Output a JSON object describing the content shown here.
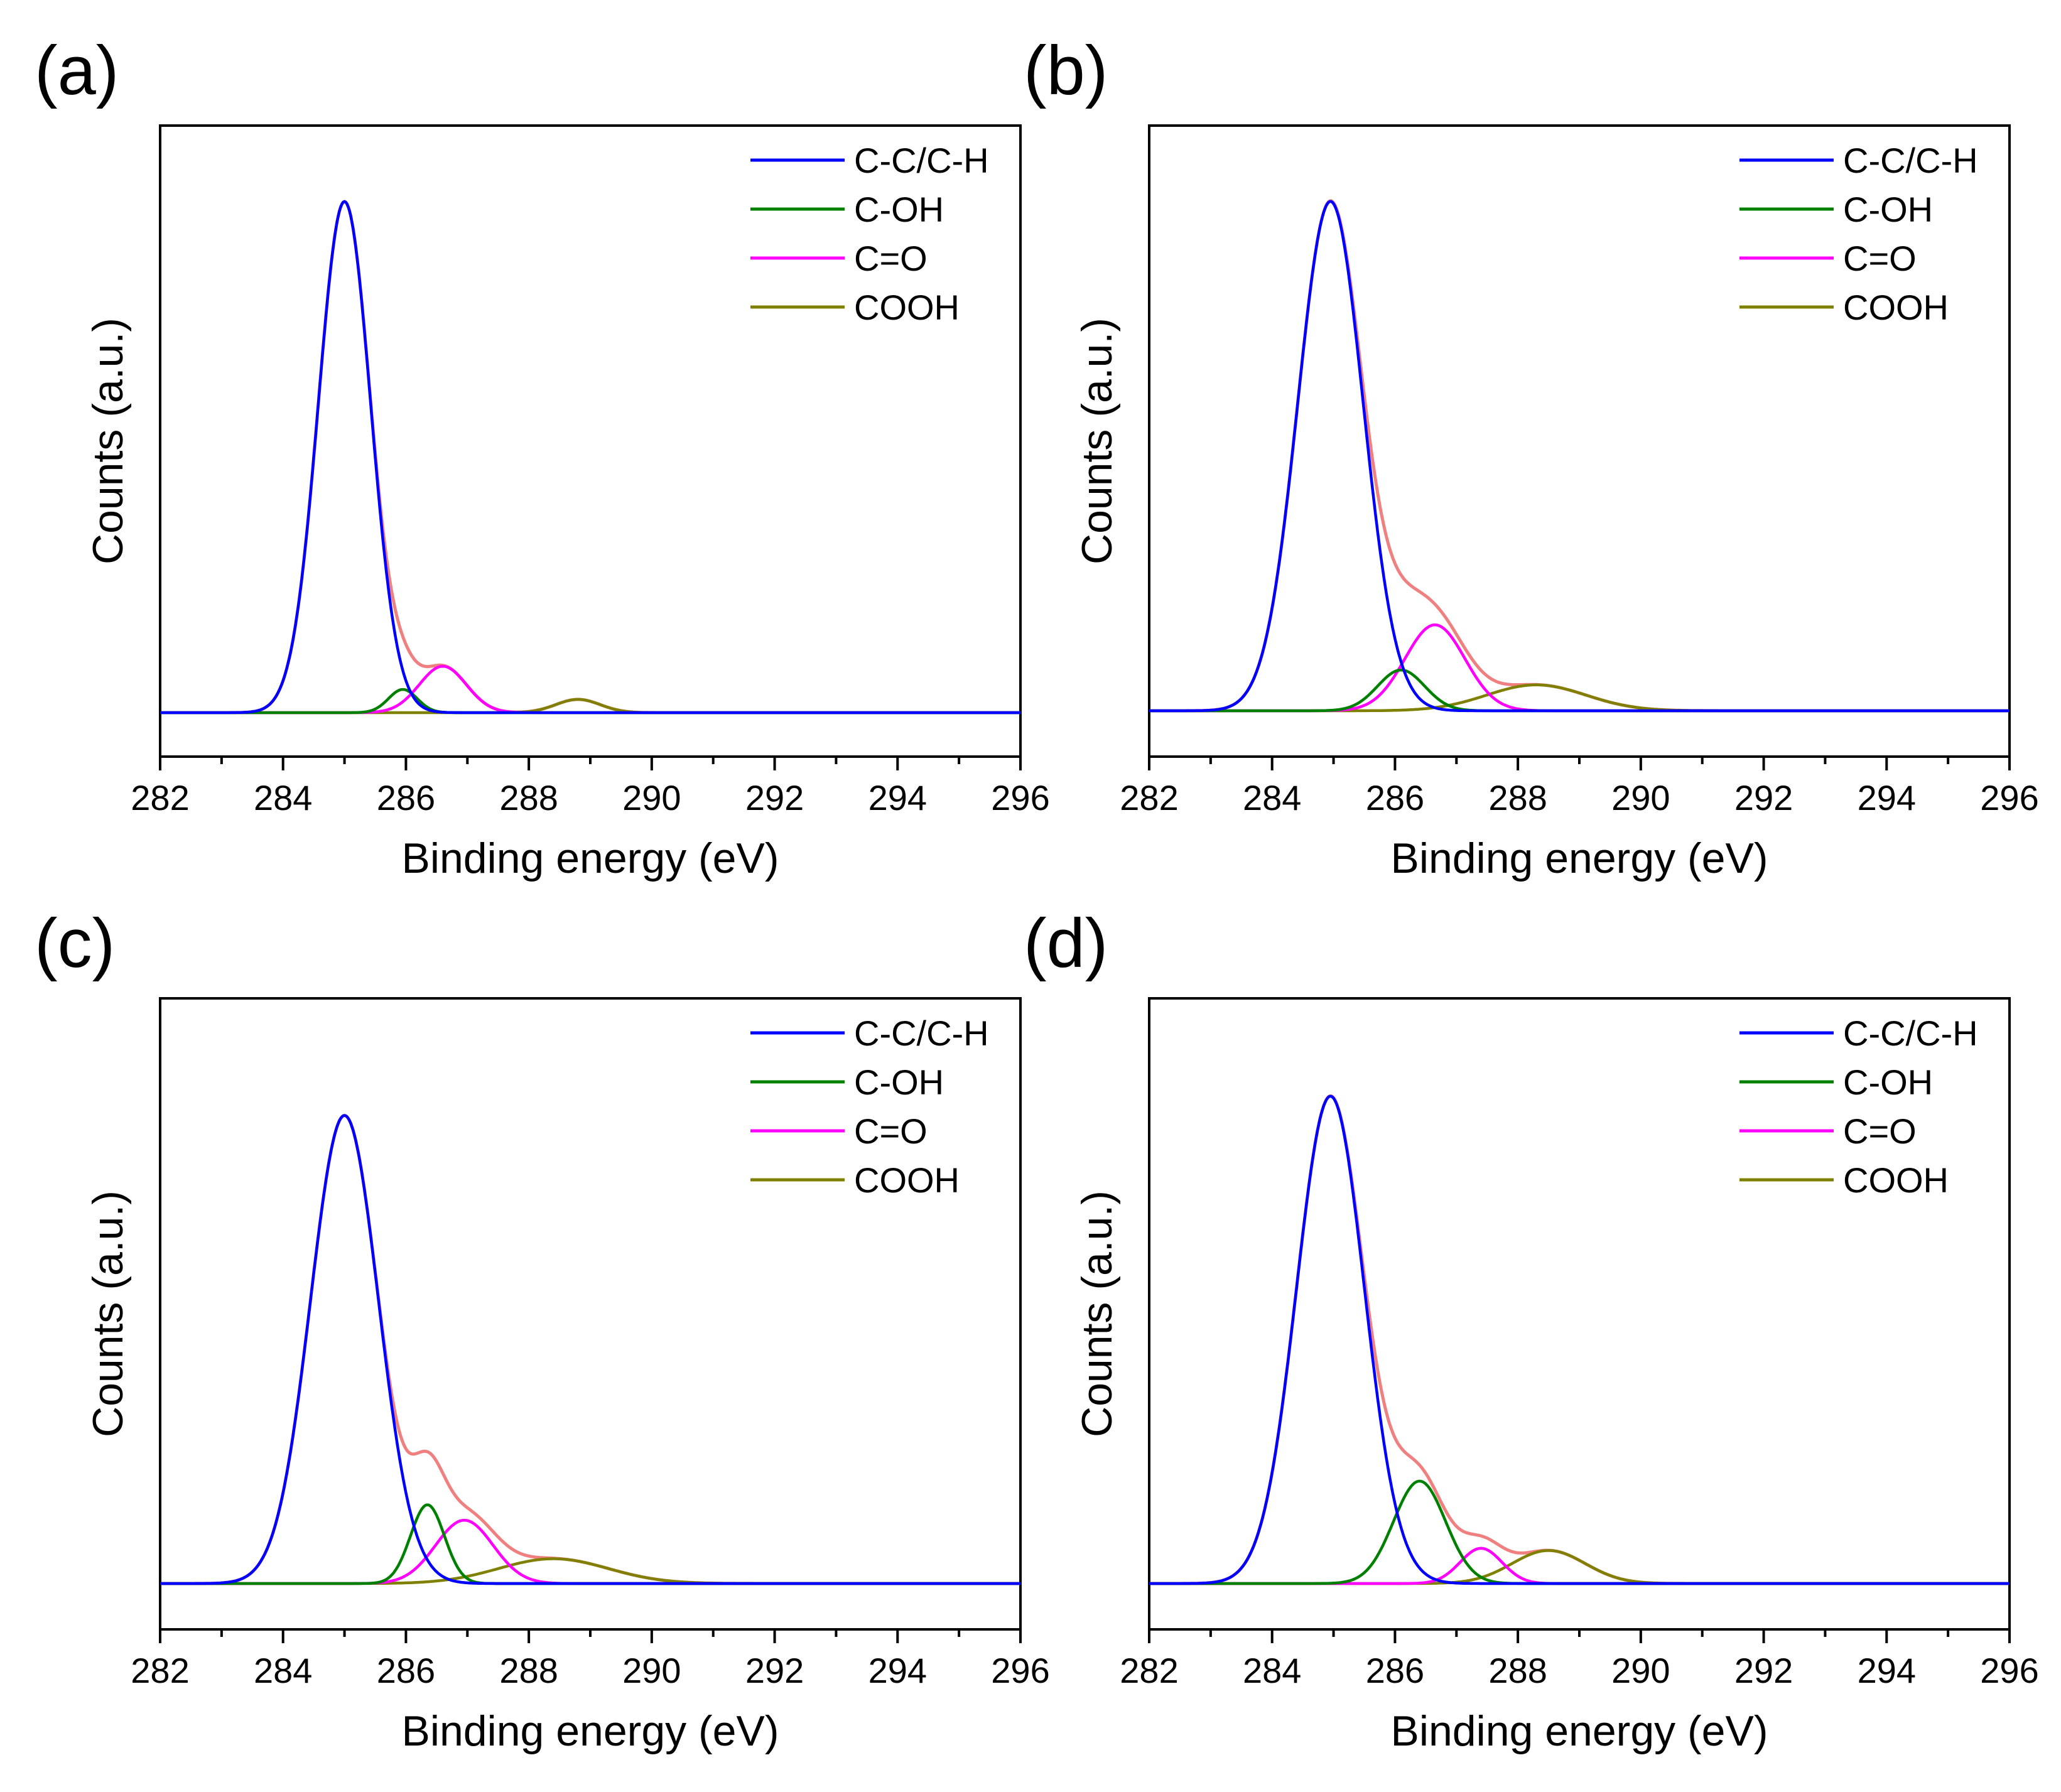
{
  "chart_data": [
    {
      "panel_label": "(a)",
      "type": "line",
      "xlabel": "Binding energy (eV)",
      "ylabel": "Counts (a.u.)",
      "xlim": [
        282,
        296
      ],
      "xticks": [
        282,
        284,
        286,
        288,
        290,
        292,
        294,
        296
      ],
      "y_ticks_shown": false,
      "grid": false,
      "legend_position": "top-right",
      "peaks": [
        {
          "name": "C-C/C-H",
          "color": "#0000ff",
          "center": 285.0,
          "fwhm": 1.0,
          "height": 0.925
        },
        {
          "name": "C-OH",
          "color": "#008000",
          "center": 285.95,
          "fwhm": 0.55,
          "height": 0.042
        },
        {
          "name": "C=O",
          "color": "#ff00ff",
          "center": 286.6,
          "fwhm": 0.9,
          "height": 0.084
        },
        {
          "name": "COOH",
          "color": "#808000",
          "center": 288.8,
          "fwhm": 0.85,
          "height": 0.024
        }
      ],
      "envelope_color": "#f08080"
    },
    {
      "panel_label": "(b)",
      "type": "line",
      "xlabel": "Binding energy (eV)",
      "ylabel": "Counts (a.u.)",
      "xlim": [
        282,
        296
      ],
      "xticks": [
        282,
        284,
        286,
        288,
        290,
        292,
        294,
        296
      ],
      "y_ticks_shown": false,
      "grid": false,
      "legend_position": "top-right",
      "peaks": [
        {
          "name": "C-C/C-H",
          "color": "#0000ff",
          "center": 284.95,
          "fwhm": 1.25,
          "height": 0.925
        },
        {
          "name": "C-OH",
          "color": "#008000",
          "center": 286.1,
          "fwhm": 0.9,
          "height": 0.074
        },
        {
          "name": "C=O",
          "color": "#ff00ff",
          "center": 286.65,
          "fwhm": 1.15,
          "height": 0.156
        },
        {
          "name": "COOH",
          "color": "#808000",
          "center": 288.3,
          "fwhm": 1.9,
          "height": 0.047
        }
      ],
      "envelope_color": "#f08080"
    },
    {
      "panel_label": "(c)",
      "type": "line",
      "xlabel": "Binding energy (eV)",
      "ylabel": "Counts (a.u.)",
      "xlim": [
        282,
        296
      ],
      "xticks": [
        282,
        284,
        286,
        288,
        290,
        292,
        294,
        296
      ],
      "y_ticks_shown": false,
      "grid": false,
      "legend_position": "top-right",
      "peaks": [
        {
          "name": "C-C/C-H",
          "color": "#0000ff",
          "center": 285.0,
          "fwhm": 1.3,
          "height": 0.85
        },
        {
          "name": "C-OH",
          "color": "#008000",
          "center": 286.35,
          "fwhm": 0.65,
          "height": 0.143
        },
        {
          "name": "C=O",
          "color": "#ff00ff",
          "center": 286.95,
          "fwhm": 1.1,
          "height": 0.115
        },
        {
          "name": "COOH",
          "color": "#808000",
          "center": 288.4,
          "fwhm": 2.1,
          "height": 0.045
        }
      ],
      "envelope_color": "#f08080"
    },
    {
      "panel_label": "(d)",
      "type": "line",
      "xlabel": "Binding energy (eV)",
      "ylabel": "Counts (a.u.)",
      "xlim": [
        282,
        296
      ],
      "xticks": [
        282,
        284,
        286,
        288,
        290,
        292,
        294,
        296
      ],
      "y_ticks_shown": false,
      "grid": false,
      "legend_position": "top-right",
      "peaks": [
        {
          "name": "C-C/C-H",
          "color": "#0000ff",
          "center": 284.95,
          "fwhm": 1.3,
          "height": 0.885
        },
        {
          "name": "C-OH",
          "color": "#008000",
          "center": 286.4,
          "fwhm": 1.0,
          "height": 0.186
        },
        {
          "name": "C=O",
          "color": "#ff00ff",
          "center": 287.4,
          "fwhm": 0.8,
          "height": 0.064
        },
        {
          "name": "COOH",
          "color": "#808000",
          "center": 288.5,
          "fwhm": 1.4,
          "height": 0.06
        }
      ],
      "envelope_color": "#f08080"
    }
  ]
}
